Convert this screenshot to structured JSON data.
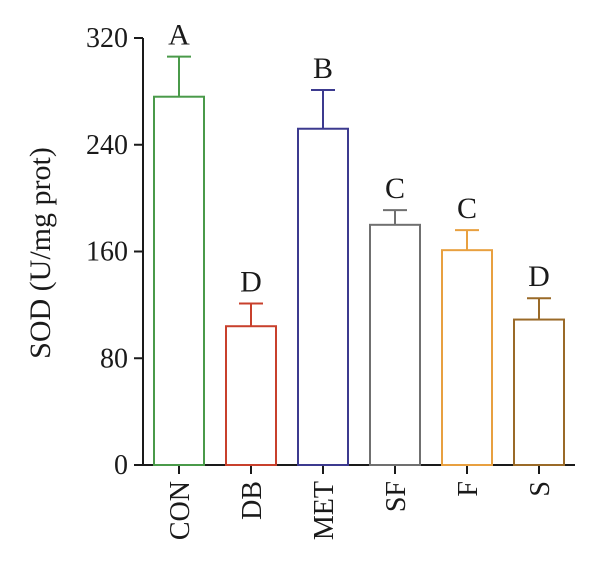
{
  "chart_data": {
    "type": "bar",
    "title": "",
    "xlabel": "",
    "ylabel": "SOD (U/mg prot)",
    "ylim": [
      0,
      320
    ],
    "yticks": [
      0,
      80,
      160,
      240,
      320
    ],
    "grid": false,
    "legend": "none",
    "categories": [
      "CON",
      "DB",
      "MET",
      "SF",
      "F",
      "S"
    ],
    "values": [
      276,
      104,
      252,
      180,
      161,
      109
    ],
    "errors": [
      30,
      17,
      29,
      11,
      15,
      16
    ],
    "significance": [
      "A",
      "D",
      "B",
      "C",
      "C",
      "D"
    ],
    "colors": [
      "#4a9a4a",
      "#c8402c",
      "#3c3a8f",
      "#707070",
      "#e8a040",
      "#9a6a28"
    ]
  }
}
